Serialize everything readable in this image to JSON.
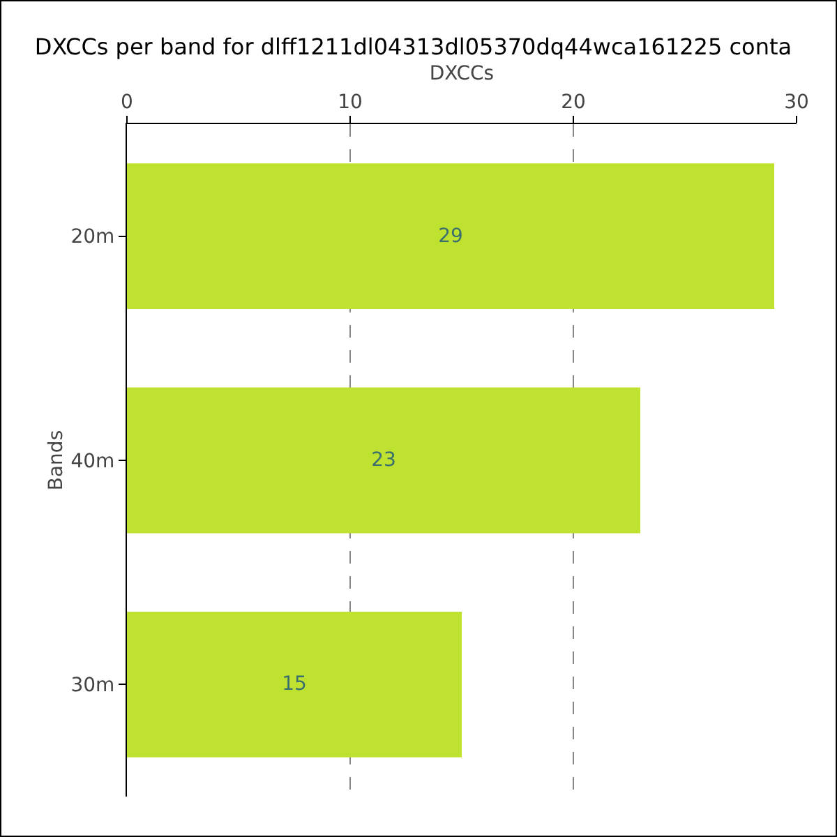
{
  "chart_data": {
    "type": "bar",
    "orientation": "horizontal",
    "title": "DXCCs per band for dlff1211dl04313dl05370dq44wca161225 conta",
    "xlabel": "DXCCs",
    "ylabel": "Bands",
    "categories": [
      "20m",
      "40m",
      "30m"
    ],
    "values": [
      29,
      23,
      15
    ],
    "color": "#bee22f",
    "xlim": [
      0,
      30
    ],
    "xticks": [
      0,
      10,
      20,
      30
    ],
    "grid": "x",
    "data_labels": true
  }
}
